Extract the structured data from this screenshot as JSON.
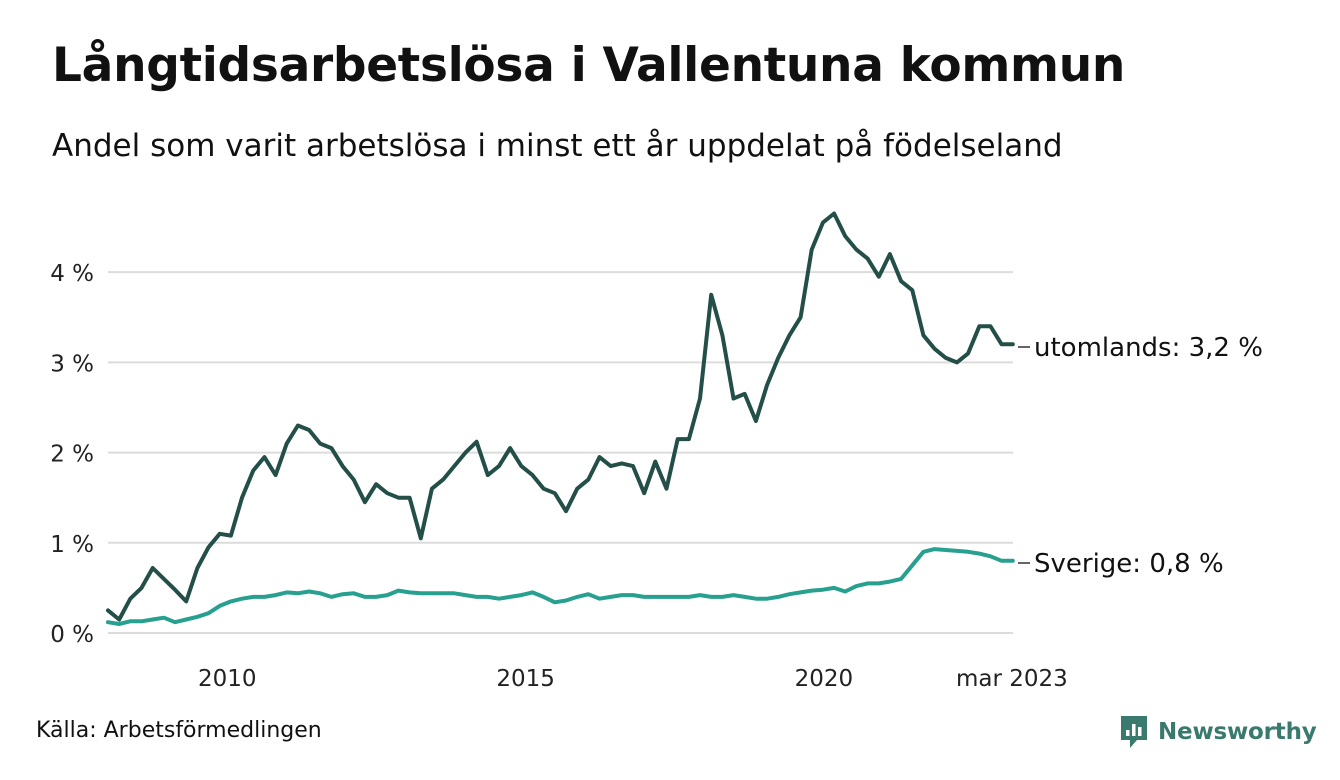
{
  "header": {
    "title": "Långtidsarbetslösa i Vallentuna kommun",
    "subtitle": "Andel som varit arbetslösa i minst ett år uppdelat på födelseland"
  },
  "footer": {
    "source": "Källa: Arbetsförmedlingen",
    "brand": "Newsworthy"
  },
  "colors": {
    "utomlands": "#234f48",
    "sverige": "#27a08f",
    "grid": "#dcdcdc",
    "brand": "#3a7a6e"
  },
  "chart_data": {
    "type": "line",
    "title": "Långtidsarbetslösa i Vallentuna kommun",
    "subtitle": "Andel som varit arbetslösa i minst ett år uppdelat på födelseland",
    "x_start": "2008-01",
    "x_end": "2023-03",
    "x_step": "quarter",
    "x_ticks": [
      "2010",
      "2015",
      "2020",
      "mar 2023"
    ],
    "ylim": [
      0,
      4.8
    ],
    "y_ticks": [
      "0 %",
      "1 %",
      "2 %",
      "3 %",
      "4 %"
    ],
    "y_tick_values": [
      0,
      1,
      2,
      3,
      4
    ],
    "grid": true,
    "legend": "inline end labels",
    "series": [
      {
        "name": "utomlands",
        "end_label": "utomlands: 3,2 %",
        "values": [
          0.25,
          0.15,
          0.38,
          0.5,
          0.72,
          0.6,
          0.48,
          0.35,
          0.72,
          0.95,
          1.1,
          1.08,
          1.5,
          1.8,
          1.95,
          1.75,
          2.1,
          2.3,
          2.25,
          2.1,
          2.05,
          1.85,
          1.7,
          1.45,
          1.65,
          1.55,
          1.5,
          1.5,
          1.05,
          1.6,
          1.7,
          1.85,
          2.0,
          2.12,
          1.75,
          1.85,
          2.05,
          1.85,
          1.75,
          1.6,
          1.55,
          1.35,
          1.6,
          1.7,
          1.95,
          1.85,
          1.88,
          1.85,
          1.55,
          1.9,
          1.6,
          2.15,
          2.15,
          2.6,
          3.75,
          3.3,
          2.6,
          2.65,
          2.35,
          2.75,
          3.05,
          3.3,
          3.5,
          4.25,
          4.55,
          4.65,
          4.4,
          4.25,
          4.15,
          3.95,
          4.2,
          3.9,
          3.8,
          3.3,
          3.15,
          3.05,
          3.0,
          3.1,
          3.4,
          3.4,
          3.2,
          3.2
        ]
      },
      {
        "name": "Sverige",
        "end_label": "Sverige: 0,8 %",
        "values": [
          0.12,
          0.1,
          0.13,
          0.13,
          0.15,
          0.17,
          0.12,
          0.15,
          0.18,
          0.22,
          0.3,
          0.35,
          0.38,
          0.4,
          0.4,
          0.42,
          0.45,
          0.44,
          0.46,
          0.44,
          0.4,
          0.43,
          0.44,
          0.4,
          0.4,
          0.42,
          0.47,
          0.45,
          0.44,
          0.44,
          0.44,
          0.44,
          0.42,
          0.4,
          0.4,
          0.38,
          0.4,
          0.42,
          0.45,
          0.4,
          0.34,
          0.36,
          0.4,
          0.43,
          0.38,
          0.4,
          0.42,
          0.42,
          0.4,
          0.4,
          0.4,
          0.4,
          0.4,
          0.42,
          0.4,
          0.4,
          0.42,
          0.4,
          0.38,
          0.38,
          0.4,
          0.43,
          0.45,
          0.47,
          0.48,
          0.5,
          0.46,
          0.52,
          0.55,
          0.55,
          0.57,
          0.6,
          0.75,
          0.9,
          0.93,
          0.92,
          0.91,
          0.9,
          0.88,
          0.85,
          0.8,
          0.8
        ]
      }
    ]
  }
}
